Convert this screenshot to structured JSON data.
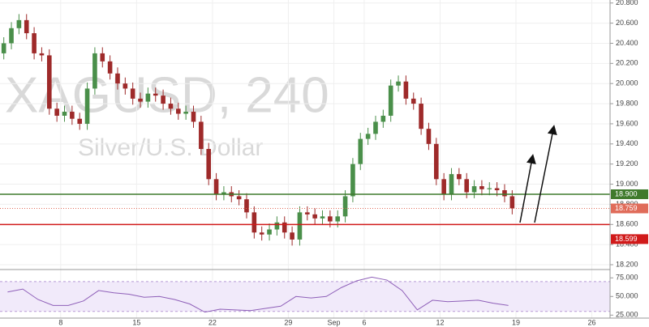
{
  "chart_data": {
    "type": "candlestick",
    "title": "XAGUSD, 240",
    "subtitle": "Silver/U.S. Dollar",
    "up_color": "#4a8f4a",
    "down_color": "#9e2a2a",
    "grid": true,
    "x": [
      0.25,
      0.75,
      1.25,
      1.75,
      2.25,
      2.75,
      3.25,
      3.75,
      4.25,
      4.75,
      5.25,
      5.75,
      6.25,
      6.75,
      7.25,
      7.75,
      8.25,
      8.75,
      9.25,
      9.75,
      10.25,
      10.75,
      11.25,
      11.75,
      12.25,
      12.75,
      13.25,
      13.75,
      14.25,
      14.75,
      15.25,
      15.75,
      16.25,
      16.75,
      17.25,
      17.75,
      18.25,
      18.75,
      19.25,
      19.75,
      20.25,
      20.75,
      21.25,
      21.75,
      22.25,
      22.75,
      23.25,
      23.75,
      24.25,
      24.75,
      25.25,
      25.75,
      26.25,
      26.75,
      27.25,
      27.75,
      28.25,
      28.75,
      29.25,
      29.75,
      30.25,
      30.75,
      31.25,
      31.75,
      32.25,
      32.75,
      33.25,
      33.75
    ],
    "open": [
      20.3,
      20.4,
      20.55,
      20.63,
      20.5,
      20.3,
      20.28,
      19.75,
      19.68,
      19.72,
      19.65,
      19.6,
      19.95,
      20.3,
      20.22,
      20.1,
      20.0,
      19.95,
      19.85,
      19.82,
      19.9,
      19.88,
      19.8,
      19.75,
      19.7,
      19.72,
      19.62,
      19.35,
      19.05,
      18.9,
      18.92,
      18.88,
      18.85,
      18.72,
      18.52,
      18.5,
      18.55,
      18.62,
      18.52,
      18.45,
      18.72,
      18.7,
      18.66,
      18.68,
      18.63,
      18.68,
      18.88,
      19.2,
      19.45,
      19.5,
      19.62,
      19.68,
      19.98,
      20.02,
      19.85,
      19.8,
      19.55,
      19.4,
      19.05,
      18.9,
      19.1,
      19.05,
      18.92,
      18.98,
      18.95,
      18.96,
      18.94,
      18.88
    ],
    "high": [
      20.46,
      20.61,
      20.69,
      20.69,
      20.56,
      20.36,
      20.34,
      19.81,
      19.78,
      19.78,
      19.71,
      20.01,
      20.36,
      20.36,
      20.28,
      20.16,
      20.06,
      20.01,
      19.91,
      19.96,
      19.96,
      19.94,
      19.86,
      19.81,
      19.78,
      19.78,
      19.68,
      19.41,
      19.11,
      18.98,
      18.98,
      18.94,
      18.91,
      18.78,
      18.58,
      18.61,
      18.68,
      18.68,
      18.58,
      18.78,
      18.78,
      18.76,
      18.74,
      18.74,
      18.74,
      18.94,
      19.26,
      19.51,
      19.56,
      19.68,
      19.74,
      20.04,
      20.08,
      20.08,
      19.91,
      19.86,
      19.61,
      19.46,
      19.11,
      19.16,
      19.16,
      19.11,
      19.04,
      19.04,
      19.02,
      19.02,
      19.0,
      18.94
    ],
    "low": [
      20.24,
      20.34,
      20.49,
      20.44,
      20.24,
      20.22,
      19.69,
      19.62,
      19.62,
      19.59,
      19.54,
      19.54,
      19.89,
      20.16,
      20.04,
      19.94,
      19.89,
      19.79,
      19.76,
      19.76,
      19.82,
      19.74,
      19.69,
      19.64,
      19.64,
      19.56,
      19.29,
      18.99,
      18.84,
      18.84,
      18.82,
      18.79,
      18.66,
      18.46,
      18.44,
      18.44,
      18.49,
      18.46,
      18.39,
      18.39,
      18.64,
      18.6,
      18.6,
      18.57,
      18.57,
      18.62,
      18.82,
      19.14,
      19.39,
      19.44,
      19.56,
      19.62,
      19.92,
      19.79,
      19.74,
      19.49,
      19.34,
      18.99,
      18.84,
      18.84,
      18.99,
      18.86,
      18.86,
      18.89,
      18.89,
      18.88,
      18.82,
      18.7
    ],
    "close": [
      20.4,
      20.55,
      20.63,
      20.5,
      20.3,
      20.28,
      19.75,
      19.68,
      19.72,
      19.65,
      19.6,
      19.95,
      20.3,
      20.22,
      20.1,
      20.0,
      19.95,
      19.85,
      19.82,
      19.9,
      19.88,
      19.8,
      19.75,
      19.7,
      19.72,
      19.62,
      19.35,
      19.05,
      18.9,
      18.92,
      18.88,
      18.85,
      18.72,
      18.52,
      18.5,
      18.55,
      18.62,
      18.52,
      18.45,
      18.72,
      18.7,
      18.66,
      18.68,
      18.63,
      18.68,
      18.88,
      19.2,
      19.45,
      19.5,
      19.62,
      19.68,
      19.98,
      20.02,
      19.85,
      19.8,
      19.55,
      19.4,
      19.05,
      18.9,
      19.1,
      19.05,
      18.92,
      18.98,
      18.95,
      18.96,
      18.94,
      18.88,
      18.76
    ],
    "xlim": [
      0,
      40.2
    ],
    "xticks": [
      {
        "value": 4,
        "label": "8"
      },
      {
        "value": 9,
        "label": "15"
      },
      {
        "value": 14,
        "label": "22"
      },
      {
        "value": 19,
        "label": "29"
      },
      {
        "value": 22,
        "label": "Sep"
      },
      {
        "value": 24,
        "label": "6"
      },
      {
        "value": 29,
        "label": "12"
      },
      {
        "value": 34,
        "label": "19"
      },
      {
        "value": 39,
        "label": "26"
      }
    ],
    "ylim": [
      18.16,
      20.83
    ],
    "yticks": [
      {
        "value": 18.2,
        "label": "18.200"
      },
      {
        "value": 18.4,
        "label": "18.400"
      },
      {
        "value": 18.6,
        "label": "18.600"
      },
      {
        "value": 18.8,
        "label": "18.800"
      },
      {
        "value": 19.0,
        "label": "19.000"
      },
      {
        "value": 19.2,
        "label": "19.200"
      },
      {
        "value": 19.4,
        "label": "19.400"
      },
      {
        "value": 19.6,
        "label": "19.600"
      },
      {
        "value": 19.8,
        "label": "19.800"
      },
      {
        "value": 20.0,
        "label": "20.000"
      },
      {
        "value": 20.2,
        "label": "20.200"
      },
      {
        "value": 20.4,
        "label": "20.400"
      },
      {
        "value": 20.6,
        "label": "20.600"
      },
      {
        "value": 20.8,
        "label": "20.800"
      }
    ],
    "levels": [
      {
        "value": 18.9,
        "label": "18.900",
        "color": "#3f7a2c"
      },
      {
        "value": 18.759,
        "label": "18.759",
        "color": "#e06c5a"
      },
      {
        "value": 18.599,
        "label": "18.599",
        "color": "#d11a1a"
      }
    ],
    "rsi": {
      "type": "line",
      "color": "#8e5fb8",
      "x": [
        0.5,
        1.5,
        2.5,
        3.5,
        4.5,
        5.5,
        6.5,
        7.5,
        8.5,
        9.5,
        10.5,
        11.5,
        12.5,
        13.5,
        14.5,
        15.5,
        16.5,
        17.5,
        18.5,
        19.5,
        20.5,
        21.5,
        22.5,
        23.5,
        24.5,
        25.5,
        26.5,
        27.5,
        28.5,
        29.5,
        30.5,
        31.5,
        32.5,
        33.5
      ],
      "values": [
        56,
        60,
        46,
        38,
        38,
        44,
        58,
        55,
        53,
        49,
        50,
        46,
        40,
        29,
        33,
        32,
        31,
        34,
        37,
        50,
        48,
        50,
        62,
        71,
        76,
        72,
        58,
        32,
        45,
        43,
        44,
        45,
        41,
        38
      ],
      "ylim": [
        21,
        84
      ],
      "band": [
        30,
        70
      ],
      "yticks": [
        {
          "value": 25,
          "label": "25.000"
        },
        {
          "value": 50,
          "label": "50.000"
        },
        {
          "value": 75,
          "label": "75.000"
        }
      ]
    }
  }
}
